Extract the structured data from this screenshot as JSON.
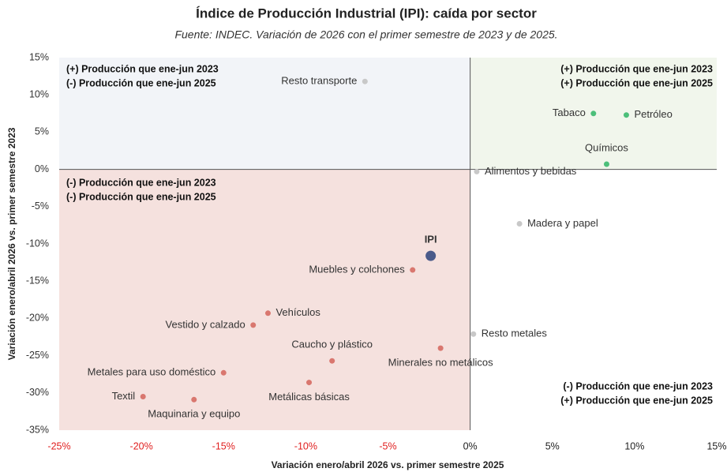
{
  "chart_data": {
    "type": "scatter",
    "title": "Índice de Producción Industrial (IPI): caída por sector",
    "subtitle": "Fuente: INDEC. Variación de 2026 con el primer semestre de 2023 y de 2025.",
    "x_label": "Variación enero/abril 2026 vs. primer semestre 2025",
    "y_label": "Variación enero/abril 2026 vs. primer semestre 2023",
    "labels": [
      "Resto transporte",
      "Tabaco",
      "Petróleo",
      "Químicos",
      "Alimentos y bebidas",
      "Madera y papel",
      "IPI",
      "Muebles y colchones",
      "Vehículos",
      "Vestido y calzado",
      "Resto metales",
      "Minerales no metálicos",
      "Caucho y plástico",
      "Metales para uso doméstico",
      "Metálicas básicas",
      "Textil",
      "Maquinaria y equipo"
    ],
    "x": [
      -6.4,
      7.5,
      9.5,
      8.3,
      0.4,
      3.0,
      -2.4,
      -3.5,
      -12.3,
      -13.2,
      0.2,
      -1.8,
      -8.4,
      -15.0,
      -9.8,
      -19.9,
      -16.8
    ],
    "y": [
      11.8,
      7.5,
      7.3,
      0.7,
      -0.3,
      -7.3,
      -11.6,
      -13.5,
      -19.3,
      -20.9,
      -22.1,
      -24.0,
      -25.7,
      -27.3,
      -28.6,
      -30.5,
      -30.9
    ],
    "colors": [
      "#c8c8c8",
      "#4cbf7a",
      "#4cbf7a",
      "#4cbf7a",
      "#c8c8c8",
      "#c8c8c8",
      "#4a5a8a",
      "#d9776f",
      "#d9776f",
      "#d9776f",
      "#c8c8c8",
      "#d9776f",
      "#d9776f",
      "#d9776f",
      "#d9776f",
      "#d9776f",
      "#d9776f"
    ],
    "marker_sizes": [
      3.5,
      3.5,
      3.5,
      3.5,
      3.5,
      3.5,
      6.5,
      3.5,
      3.5,
      3.5,
      3.5,
      3.5,
      3.5,
      3.5,
      3.5,
      3.5,
      3.5
    ],
    "xlim": [
      -25,
      15
    ],
    "ylim": [
      -35,
      15
    ],
    "xticks": [
      {
        "value": -25,
        "label": "-25%"
      },
      {
        "value": -20,
        "label": "-20%"
      },
      {
        "value": -15,
        "label": "-15%"
      },
      {
        "value": -10,
        "label": "-10%"
      },
      {
        "value": -5,
        "label": "-5%"
      },
      {
        "value": 0,
        "label": "0%"
      },
      {
        "value": 5,
        "label": "5%"
      },
      {
        "value": 10,
        "label": "10%"
      },
      {
        "value": 15,
        "label": "15%"
      }
    ],
    "yticks": [
      {
        "value": -35,
        "label": "-35%"
      },
      {
        "value": -30,
        "label": "-30%"
      },
      {
        "value": -25,
        "label": "-25%"
      },
      {
        "value": -20,
        "label": "-20%"
      },
      {
        "value": -15,
        "label": "-15%"
      },
      {
        "value": -10,
        "label": "-10%"
      },
      {
        "value": -5,
        "label": "-5%"
      },
      {
        "value": 0,
        "label": "0%"
      },
      {
        "value": 5,
        "label": "5%"
      },
      {
        "value": 10,
        "label": "10%"
      },
      {
        "value": 15,
        "label": "15%"
      }
    ],
    "quadrant_colors": [
      "#f2f4f8",
      "#f1f6ec",
      "#f5e1de",
      "#ffffff"
    ],
    "annotations": [
      [
        "(+) Producción que ene-jun 2023",
        "(-) Producción que ene-jun 2025"
      ],
      [
        "(+) Producción que ene-jun 2023",
        "(+) Producción que ene-jun 2025"
      ],
      [
        "(-) Producción que ene-jun 2023",
        "(-) Producción que ene-jun 2025"
      ],
      [
        "(-) Producción que ene-jun 2023",
        "(+) Producción que ene-jun 2025"
      ]
    ]
  }
}
